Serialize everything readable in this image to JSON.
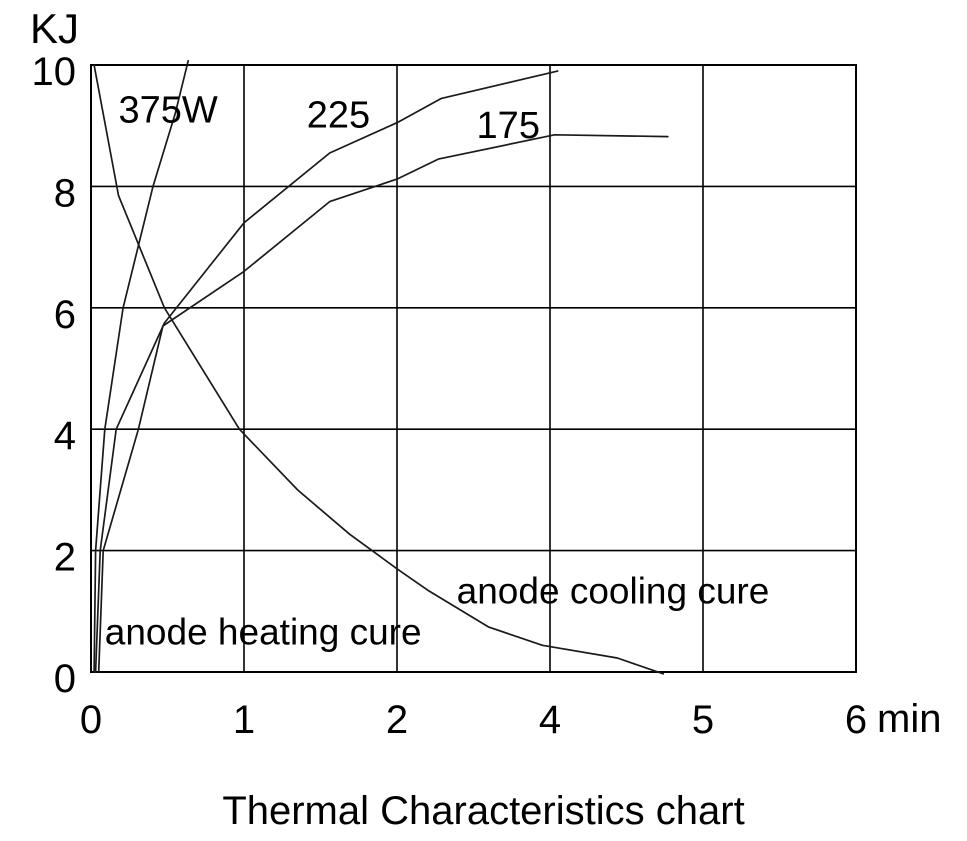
{
  "chart_data": {
    "type": "line",
    "title": "Thermal Characteristics chart",
    "legend_position": "none",
    "grid": true,
    "colors": {
      "curve": "#1a1a1a",
      "grid": "#000000",
      "text": "#000000",
      "background": "#ffffff"
    },
    "y_axis": {
      "unit_label": "KJ",
      "tick_labels": [
        "10",
        "8",
        "6",
        "4",
        "2",
        "0"
      ],
      "tick_values": [
        10,
        8,
        6,
        4,
        2,
        0
      ],
      "range": [
        0,
        10
      ]
    },
    "x_axis": {
      "unit_label": "min",
      "tick_labels": [
        "0",
        "1",
        "2",
        "4",
        "5",
        "6"
      ],
      "gridline_positions": [
        0,
        1,
        2,
        3,
        4,
        5
      ],
      "note": "Six equally spaced gridlines; printed tick labels skip the value 3 (labels read 0,1,2,4,5,6). Series x-coordinates below are in gridline units."
    },
    "series": [
      {
        "id": "heating-375w",
        "name": "anode heating curve 375W",
        "points": [
          [
            0.02,
            0
          ],
          [
            0.03,
            2.0
          ],
          [
            0.09,
            4.0
          ],
          [
            0.21,
            6.0
          ],
          [
            0.405,
            8.0
          ],
          [
            0.55,
            9.2
          ],
          [
            0.635,
            10.07
          ]
        ]
      },
      {
        "id": "heating-225",
        "name": "anode heating curve 225",
        "points": [
          [
            0.03,
            0
          ],
          [
            0.06,
            2.0
          ],
          [
            0.165,
            4.0
          ],
          [
            0.48,
            5.75
          ],
          [
            1.0,
            7.4
          ],
          [
            1.56,
            8.55
          ],
          [
            2.0,
            9.05
          ],
          [
            2.29,
            9.45
          ],
          [
            3.05,
            9.9
          ]
        ]
      },
      {
        "id": "heating-175",
        "name": "anode heating curve 175",
        "points": [
          [
            0.05,
            0
          ],
          [
            0.08,
            2.0
          ],
          [
            0.31,
            4.0
          ],
          [
            0.47,
            5.7
          ],
          [
            1.0,
            6.6
          ],
          [
            1.56,
            7.75
          ],
          [
            2.0,
            8.12
          ],
          [
            2.27,
            8.45
          ],
          [
            3.03,
            8.85
          ],
          [
            3.77,
            8.82
          ]
        ]
      },
      {
        "id": "cooling",
        "name": "anode cooling curve",
        "points": [
          [
            0.02,
            10.0
          ],
          [
            0.18,
            7.85
          ],
          [
            0.48,
            6.0
          ],
          [
            0.97,
            4.0
          ],
          [
            1.35,
            3.0
          ],
          [
            1.69,
            2.27
          ],
          [
            2.0,
            1.7
          ],
          [
            2.2,
            1.35
          ],
          [
            2.6,
            0.74
          ],
          [
            2.95,
            0.44
          ],
          [
            3.44,
            0.23
          ],
          [
            3.74,
            -0.03
          ]
        ]
      }
    ],
    "curve_labels": [
      {
        "id": "375w",
        "text": "375W",
        "x": 0.18,
        "y": 9.05
      },
      {
        "id": "225",
        "text": "225",
        "x": 1.41,
        "y": 8.97
      },
      {
        "id": "175",
        "text": "175",
        "x": 2.52,
        "y": 8.8
      }
    ],
    "annotations": [
      {
        "id": "heating",
        "text": "anode heating cure",
        "x": 0.09,
        "y": 0.45
      },
      {
        "id": "cooling",
        "text": "anode cooling cure",
        "x": 2.39,
        "y": 1.13
      }
    ]
  }
}
